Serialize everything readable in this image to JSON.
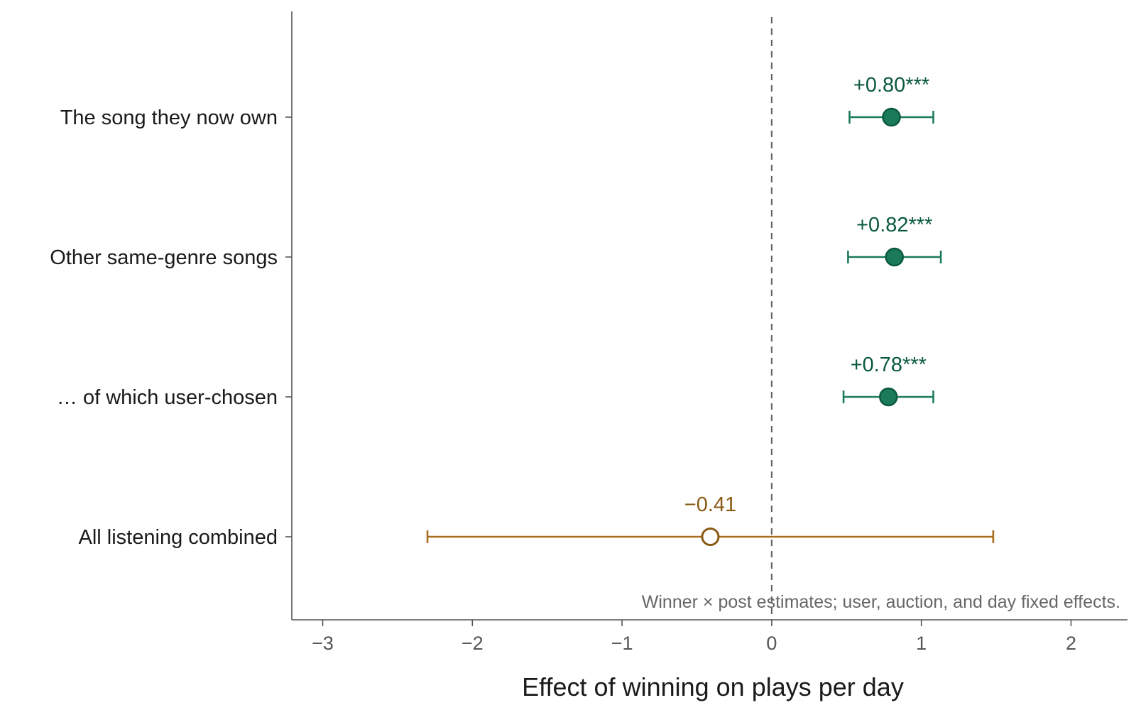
{
  "chart_data": {
    "type": "scatter",
    "subtype": "coefficient-plot",
    "xlabel": "Effect of winning on plays per day",
    "ylabel": "",
    "xlim": [
      -3.2,
      2.4
    ],
    "xticks": [
      -3,
      -2,
      -1,
      0,
      1,
      2
    ],
    "xtick_labels": [
      "−3",
      "−2",
      "−1",
      "0",
      "1",
      "2"
    ],
    "reference_line": 0,
    "grid": false,
    "note": "Winner × post estimates; user, auction, and day fixed effects.",
    "colors": {
      "significant": "#1a7a5a",
      "significant_text": "#0b5a3f",
      "nonsignificant": "#a86d1f",
      "nonsignificant_text": "#8a5a14",
      "axis": "#555555",
      "reference": "#666666"
    },
    "estimates": [
      {
        "label": "The song they now own",
        "value": 0.8,
        "ci": [
          0.52,
          1.08
        ],
        "annotation": "+0.80***",
        "significant": true
      },
      {
        "label": "Other same-genre songs",
        "value": 0.82,
        "ci": [
          0.51,
          1.13
        ],
        "annotation": "+0.82***",
        "significant": true
      },
      {
        "label": "… of which user-chosen",
        "value": 0.78,
        "ci": [
          0.48,
          1.08
        ],
        "annotation": "+0.78***",
        "significant": true
      },
      {
        "label": "All listening combined",
        "value": -0.41,
        "ci": [
          -2.3,
          1.48
        ],
        "annotation": "−0.41",
        "significant": false
      }
    ]
  }
}
